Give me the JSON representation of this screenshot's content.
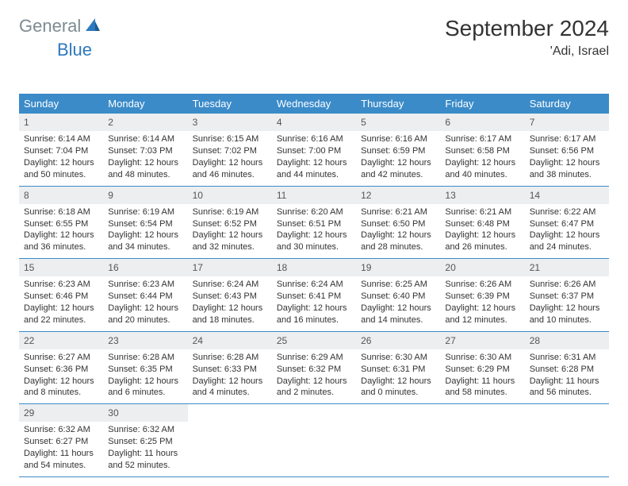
{
  "logo": {
    "general": "General",
    "blue": "Blue"
  },
  "title": "September 2024",
  "location": "'Adi, Israel",
  "days_of_week": [
    "Sunday",
    "Monday",
    "Tuesday",
    "Wednesday",
    "Thursday",
    "Friday",
    "Saturday"
  ],
  "colors": {
    "header_bg": "#3b8bc9",
    "header_text": "#ffffff",
    "daynum_bg": "#eceeef",
    "border": "#3b8bc9",
    "logo_gray": "#7d8b92",
    "logo_blue": "#2e79bd"
  },
  "typography": {
    "title_fontsize": 28,
    "location_fontsize": 16,
    "dayhead_fontsize": 13,
    "cell_fontsize": 11
  },
  "weeks": [
    [
      {
        "n": "1",
        "sunrise": "6:14 AM",
        "sunset": "7:04 PM",
        "day_h": "12",
        "day_m": "50"
      },
      {
        "n": "2",
        "sunrise": "6:14 AM",
        "sunset": "7:03 PM",
        "day_h": "12",
        "day_m": "48"
      },
      {
        "n": "3",
        "sunrise": "6:15 AM",
        "sunset": "7:02 PM",
        "day_h": "12",
        "day_m": "46"
      },
      {
        "n": "4",
        "sunrise": "6:16 AM",
        "sunset": "7:00 PM",
        "day_h": "12",
        "day_m": "44"
      },
      {
        "n": "5",
        "sunrise": "6:16 AM",
        "sunset": "6:59 PM",
        "day_h": "12",
        "day_m": "42"
      },
      {
        "n": "6",
        "sunrise": "6:17 AM",
        "sunset": "6:58 PM",
        "day_h": "12",
        "day_m": "40"
      },
      {
        "n": "7",
        "sunrise": "6:17 AM",
        "sunset": "6:56 PM",
        "day_h": "12",
        "day_m": "38"
      }
    ],
    [
      {
        "n": "8",
        "sunrise": "6:18 AM",
        "sunset": "6:55 PM",
        "day_h": "12",
        "day_m": "36"
      },
      {
        "n": "9",
        "sunrise": "6:19 AM",
        "sunset": "6:54 PM",
        "day_h": "12",
        "day_m": "34"
      },
      {
        "n": "10",
        "sunrise": "6:19 AM",
        "sunset": "6:52 PM",
        "day_h": "12",
        "day_m": "32"
      },
      {
        "n": "11",
        "sunrise": "6:20 AM",
        "sunset": "6:51 PM",
        "day_h": "12",
        "day_m": "30"
      },
      {
        "n": "12",
        "sunrise": "6:21 AM",
        "sunset": "6:50 PM",
        "day_h": "12",
        "day_m": "28"
      },
      {
        "n": "13",
        "sunrise": "6:21 AM",
        "sunset": "6:48 PM",
        "day_h": "12",
        "day_m": "26"
      },
      {
        "n": "14",
        "sunrise": "6:22 AM",
        "sunset": "6:47 PM",
        "day_h": "12",
        "day_m": "24"
      }
    ],
    [
      {
        "n": "15",
        "sunrise": "6:23 AM",
        "sunset": "6:46 PM",
        "day_h": "12",
        "day_m": "22"
      },
      {
        "n": "16",
        "sunrise": "6:23 AM",
        "sunset": "6:44 PM",
        "day_h": "12",
        "day_m": "20"
      },
      {
        "n": "17",
        "sunrise": "6:24 AM",
        "sunset": "6:43 PM",
        "day_h": "12",
        "day_m": "18"
      },
      {
        "n": "18",
        "sunrise": "6:24 AM",
        "sunset": "6:41 PM",
        "day_h": "12",
        "day_m": "16"
      },
      {
        "n": "19",
        "sunrise": "6:25 AM",
        "sunset": "6:40 PM",
        "day_h": "12",
        "day_m": "14"
      },
      {
        "n": "20",
        "sunrise": "6:26 AM",
        "sunset": "6:39 PM",
        "day_h": "12",
        "day_m": "12"
      },
      {
        "n": "21",
        "sunrise": "6:26 AM",
        "sunset": "6:37 PM",
        "day_h": "12",
        "day_m": "10"
      }
    ],
    [
      {
        "n": "22",
        "sunrise": "6:27 AM",
        "sunset": "6:36 PM",
        "day_h": "12",
        "day_m": "8"
      },
      {
        "n": "23",
        "sunrise": "6:28 AM",
        "sunset": "6:35 PM",
        "day_h": "12",
        "day_m": "6"
      },
      {
        "n": "24",
        "sunrise": "6:28 AM",
        "sunset": "6:33 PM",
        "day_h": "12",
        "day_m": "4"
      },
      {
        "n": "25",
        "sunrise": "6:29 AM",
        "sunset": "6:32 PM",
        "day_h": "12",
        "day_m": "2"
      },
      {
        "n": "26",
        "sunrise": "6:30 AM",
        "sunset": "6:31 PM",
        "day_h": "12",
        "day_m": "0"
      },
      {
        "n": "27",
        "sunrise": "6:30 AM",
        "sunset": "6:29 PM",
        "day_h": "11",
        "day_m": "58"
      },
      {
        "n": "28",
        "sunrise": "6:31 AM",
        "sunset": "6:28 PM",
        "day_h": "11",
        "day_m": "56"
      }
    ],
    [
      {
        "n": "29",
        "sunrise": "6:32 AM",
        "sunset": "6:27 PM",
        "day_h": "11",
        "day_m": "54"
      },
      {
        "n": "30",
        "sunrise": "6:32 AM",
        "sunset": "6:25 PM",
        "day_h": "11",
        "day_m": "52"
      },
      null,
      null,
      null,
      null,
      null
    ]
  ]
}
